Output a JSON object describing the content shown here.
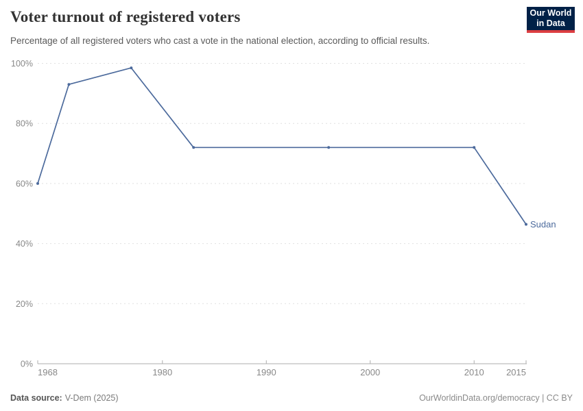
{
  "header": {
    "logo": {
      "line1": "Our World",
      "line2": "in Data"
    }
  },
  "footer": {
    "source_label": "Data source:",
    "source_value": "V-Dem (2025)",
    "credit": "OurWorldinData.org/democracy | CC BY"
  },
  "colors": {
    "line": "#4c6a9c",
    "entity_label": "#4c6a9c",
    "grid": "#e0e0e0",
    "axis": "#adadad",
    "tick_label": "#888888",
    "logo_bg": "#002147",
    "logo_accent": "#dc3e42"
  },
  "chart_data": {
    "type": "line",
    "title": "Voter turnout of registered voters",
    "subtitle": "Percentage of all registered voters who cast a vote in the national election, according to official results.",
    "series": [
      {
        "name": "Sudan",
        "color": "#4c6a9c",
        "points": [
          {
            "year": 1968,
            "value": 60
          },
          {
            "year": 1971,
            "value": 93
          },
          {
            "year": 1977,
            "value": 98.5
          },
          {
            "year": 1983,
            "value": 72
          },
          {
            "year": 1996,
            "value": 72
          },
          {
            "year": 2010,
            "value": 72
          },
          {
            "year": 2015,
            "value": 46.4
          }
        ]
      }
    ],
    "end_label": "Sudan",
    "x_ticks": [
      1968,
      1980,
      1990,
      2000,
      2010,
      2015
    ],
    "y_ticks": [
      0,
      20,
      40,
      60,
      80,
      100
    ],
    "y_tick_suffix": "%",
    "xlim": [
      1968,
      2015
    ],
    "ylim": [
      0,
      100
    ],
    "xlabel": "",
    "ylabel": "",
    "grid": "horizontal-dashed",
    "legend_position": "end-of-line-label",
    "marker": "dot"
  }
}
